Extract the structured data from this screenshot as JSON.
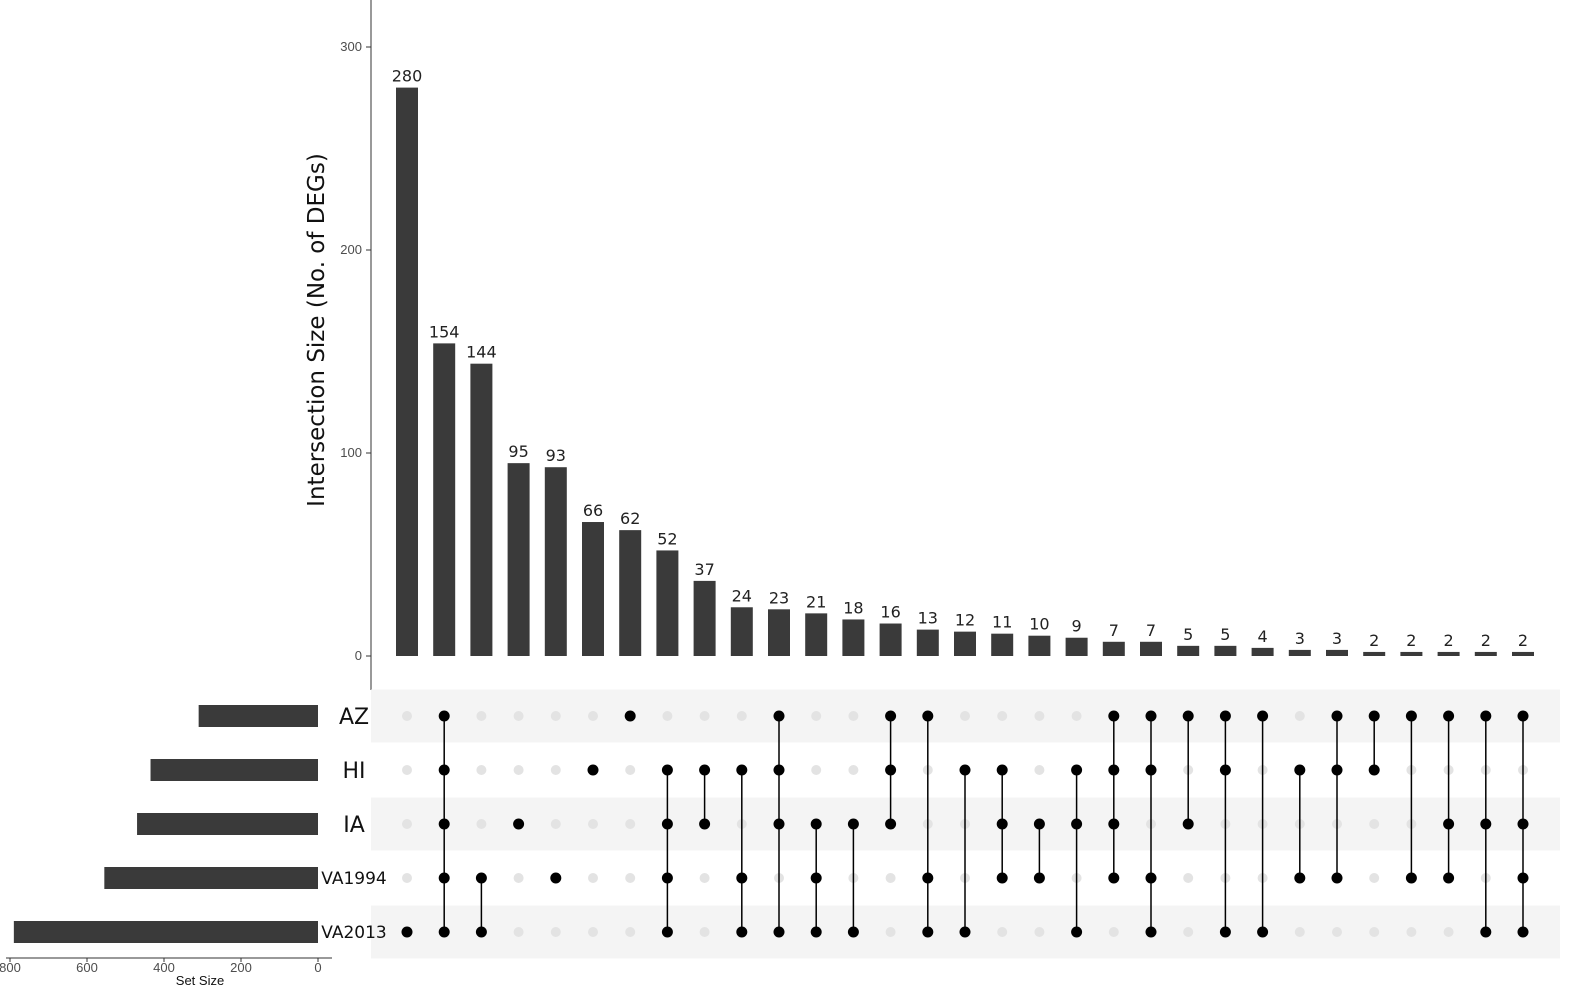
{
  "chart_data": {
    "type": "upset",
    "ylabel": "Intersection Size (No. of DEGs)",
    "yticks": [
      0,
      100,
      200,
      300
    ],
    "ylim": [
      0,
      300
    ],
    "set_size_label": "Set Size",
    "set_size_ticks": [
      800,
      600,
      400,
      200,
      0
    ],
    "set_size_lim": [
      0,
      800
    ],
    "sets": [
      {
        "name": "AZ",
        "size": 310
      },
      {
        "name": "HI",
        "size": 435
      },
      {
        "name": "IA",
        "size": 470
      },
      {
        "name": "VA1994",
        "size": 555
      },
      {
        "name": "VA2013",
        "size": 790
      }
    ],
    "intersections": [
      {
        "size": 280,
        "sets": [
          "VA2013"
        ]
      },
      {
        "size": 154,
        "sets": [
          "AZ",
          "HI",
          "IA",
          "VA1994",
          "VA2013"
        ]
      },
      {
        "size": 144,
        "sets": [
          "VA1994",
          "VA2013"
        ]
      },
      {
        "size": 95,
        "sets": [
          "IA"
        ]
      },
      {
        "size": 93,
        "sets": [
          "VA1994"
        ]
      },
      {
        "size": 66,
        "sets": [
          "HI"
        ]
      },
      {
        "size": 62,
        "sets": [
          "AZ"
        ]
      },
      {
        "size": 52,
        "sets": [
          "HI",
          "IA",
          "VA1994",
          "VA2013"
        ]
      },
      {
        "size": 37,
        "sets": [
          "HI",
          "IA"
        ]
      },
      {
        "size": 24,
        "sets": [
          "HI",
          "VA1994",
          "VA2013"
        ]
      },
      {
        "size": 23,
        "sets": [
          "AZ",
          "HI",
          "IA",
          "VA2013"
        ]
      },
      {
        "size": 21,
        "sets": [
          "IA",
          "VA1994",
          "VA2013"
        ]
      },
      {
        "size": 18,
        "sets": [
          "IA",
          "VA2013"
        ]
      },
      {
        "size": 16,
        "sets": [
          "AZ",
          "HI",
          "IA"
        ]
      },
      {
        "size": 13,
        "sets": [
          "AZ",
          "VA1994",
          "VA2013"
        ]
      },
      {
        "size": 12,
        "sets": [
          "HI",
          "VA2013"
        ]
      },
      {
        "size": 11,
        "sets": [
          "HI",
          "IA",
          "VA1994"
        ]
      },
      {
        "size": 10,
        "sets": [
          "IA",
          "VA1994"
        ]
      },
      {
        "size": 9,
        "sets": [
          "HI",
          "IA",
          "VA2013"
        ]
      },
      {
        "size": 7,
        "sets": [
          "AZ",
          "HI",
          "IA",
          "VA1994"
        ]
      },
      {
        "size": 7,
        "sets": [
          "AZ",
          "HI",
          "VA1994",
          "VA2013"
        ]
      },
      {
        "size": 5,
        "sets": [
          "AZ",
          "IA"
        ]
      },
      {
        "size": 5,
        "sets": [
          "AZ",
          "HI",
          "VA2013"
        ]
      },
      {
        "size": 4,
        "sets": [
          "AZ",
          "VA2013"
        ]
      },
      {
        "size": 3,
        "sets": [
          "HI",
          "VA1994"
        ]
      },
      {
        "size": 3,
        "sets": [
          "AZ",
          "HI",
          "VA1994"
        ]
      },
      {
        "size": 2,
        "sets": [
          "AZ",
          "HI"
        ]
      },
      {
        "size": 2,
        "sets": [
          "AZ",
          "VA1994"
        ]
      },
      {
        "size": 2,
        "sets": [
          "AZ",
          "IA",
          "VA1994"
        ]
      },
      {
        "size": 2,
        "sets": [
          "AZ",
          "IA",
          "VA2013"
        ]
      },
      {
        "size": 2,
        "sets": [
          "AZ",
          "IA",
          "VA1994",
          "VA2013"
        ]
      }
    ],
    "colors": {
      "bar": "#3a3a3a",
      "dot_active": "#000000",
      "dot_inactive": "#e3e3e3",
      "row_shade": "#f4f4f4"
    },
    "grid": false
  }
}
